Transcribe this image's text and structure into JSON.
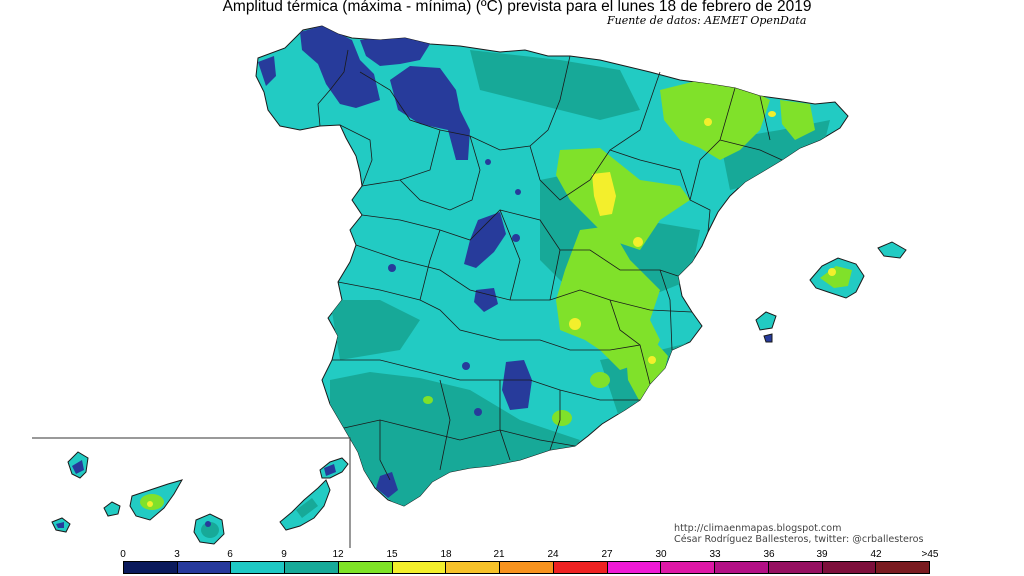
{
  "header": {
    "title": "Amplitud térmica (máxima - mínima) (ºC) prevista para el lunes 18 de febrero de 2019",
    "source": "Fuente de datos: AEMET OpenData"
  },
  "credits": {
    "website": "http://climaenmapas.blogspot.com",
    "author": "César Rodríguez Ballesteros, twitter: @crballesteros"
  },
  "legend": {
    "labels": [
      "0",
      "3",
      "6",
      "9",
      "12",
      "15",
      "18",
      "21",
      "24",
      "27",
      "30",
      "33",
      "36",
      "39",
      "42",
      ">45"
    ],
    "colors": [
      "#0b1a5c",
      "#273a9c",
      "#1ec8c4",
      "#17aa99",
      "#7fe327",
      "#f3ef2c",
      "#f6c22a",
      "#f7931e",
      "#ee2222",
      "#f01ad5",
      "#de18a6",
      "#b31085",
      "#961061",
      "#7d0f3b",
      "#7a1b20"
    ]
  },
  "colors": {
    "cyan": "#22cbc3",
    "teal": "#17a998",
    "dark_blue": "#273b9b",
    "green": "#80e12a",
    "yellow": "#f3ef2c",
    "border": "#1a1a1a"
  }
}
